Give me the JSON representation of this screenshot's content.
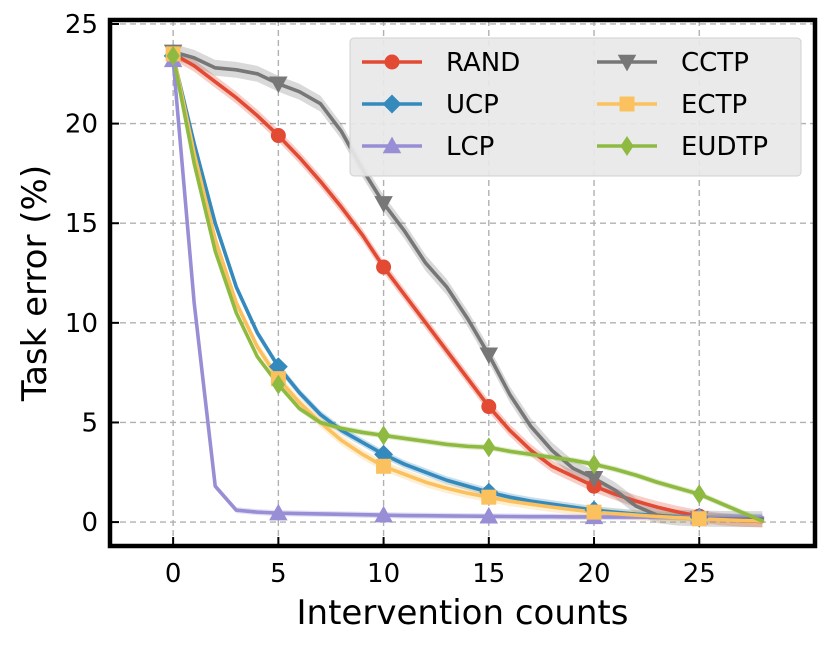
{
  "chart_data": {
    "type": "line",
    "title": "",
    "xlabel": "Intervention counts",
    "ylabel": "Task error (%)",
    "xlim": [
      -3,
      30.5
    ],
    "ylim": [
      -1.2,
      25.2
    ],
    "xticks": [
      0,
      5,
      10,
      15,
      20,
      25
    ],
    "yticks": [
      0,
      5,
      10,
      15,
      20,
      25
    ],
    "grid": true,
    "legend_position": "top-right",
    "series": [
      {
        "name": "RAND",
        "color": "#e24a33",
        "marker": "circle",
        "x": [
          0,
          1,
          2,
          3,
          4,
          5,
          6,
          7,
          8,
          9,
          10,
          11,
          12,
          13,
          14,
          15,
          16,
          17,
          18,
          19,
          20,
          21,
          22,
          23,
          24,
          25,
          26,
          27,
          28
        ],
        "y": [
          23.5,
          22.9,
          22.1,
          21.3,
          20.4,
          19.4,
          18.3,
          17.1,
          15.8,
          14.4,
          12.8,
          11.4,
          10.0,
          8.6,
          7.2,
          5.8,
          4.6,
          3.6,
          2.8,
          2.3,
          1.8,
          1.4,
          1.05,
          0.75,
          0.5,
          0.3,
          0.15,
          0.07,
          0.03
        ],
        "marker_x": [
          0,
          5,
          10,
          15,
          20,
          25
        ],
        "band": 0.3
      },
      {
        "name": "UCP",
        "color": "#348abd",
        "marker": "diamond",
        "x": [
          0,
          1,
          2,
          3,
          4,
          5,
          6,
          7,
          8,
          9,
          10,
          11,
          12,
          13,
          14,
          15,
          16,
          17,
          18,
          19,
          20,
          21,
          22,
          23,
          24,
          25,
          26,
          27,
          28
        ],
        "y": [
          23.4,
          19.0,
          15.0,
          11.8,
          9.5,
          7.8,
          6.5,
          5.4,
          4.6,
          4.0,
          3.4,
          2.9,
          2.5,
          2.1,
          1.8,
          1.5,
          1.25,
          1.05,
          0.9,
          0.75,
          0.6,
          0.5,
          0.4,
          0.33,
          0.28,
          0.25,
          0.23,
          0.22,
          0.21
        ],
        "marker_x": [
          0,
          5,
          10,
          15,
          20,
          25
        ],
        "band": 0.2
      },
      {
        "name": "LCP",
        "color": "#988ed5",
        "marker": "triangle-up",
        "x": [
          0,
          1,
          2,
          3,
          4,
          5,
          6,
          7,
          8,
          9,
          10,
          11,
          12,
          13,
          14,
          15,
          16,
          17,
          18,
          19,
          20,
          21,
          22,
          23,
          24,
          25,
          26,
          27,
          28
        ],
        "y": [
          23.2,
          11.0,
          1.8,
          0.6,
          0.5,
          0.45,
          0.43,
          0.41,
          0.39,
          0.37,
          0.35,
          0.33,
          0.32,
          0.31,
          0.3,
          0.29,
          0.28,
          0.27,
          0.27,
          0.26,
          0.26,
          0.25,
          0.25,
          0.24,
          0.24,
          0.24,
          0.23,
          0.23,
          0.23
        ],
        "marker_x": [
          0,
          5,
          10,
          15,
          20,
          25
        ],
        "band": 0.15
      },
      {
        "name": "CCTP",
        "color": "#777777",
        "marker": "triangle-down",
        "x": [
          0,
          1,
          2,
          3,
          4,
          5,
          6,
          7,
          8,
          9,
          10,
          11,
          12,
          13,
          14,
          15,
          16,
          17,
          18,
          19,
          20,
          21,
          22,
          23,
          24,
          25,
          26,
          27,
          28
        ],
        "y": [
          23.6,
          23.3,
          22.8,
          22.7,
          22.5,
          22.0,
          21.6,
          21.0,
          19.6,
          17.7,
          16.0,
          14.6,
          13.0,
          11.8,
          10.2,
          8.4,
          6.4,
          4.8,
          3.6,
          2.7,
          2.2,
          1.6,
          0.8,
          0.35,
          0.22,
          0.18,
          0.16,
          0.15,
          0.15
        ],
        "marker_x": [
          0,
          5,
          10,
          15,
          20,
          25
        ],
        "band": 0.4
      },
      {
        "name": "ECTP",
        "color": "#fbc15e",
        "marker": "square",
        "x": [
          0,
          1,
          2,
          3,
          4,
          5,
          6,
          7,
          8,
          9,
          10,
          11,
          12,
          13,
          14,
          15,
          16,
          17,
          18,
          19,
          20,
          21,
          22,
          23,
          24,
          25,
          26,
          27,
          28
        ],
        "y": [
          23.5,
          18.5,
          14.2,
          11.0,
          8.8,
          7.2,
          6.0,
          5.0,
          4.1,
          3.4,
          2.8,
          2.4,
          2.0,
          1.7,
          1.45,
          1.25,
          1.05,
          0.9,
          0.75,
          0.62,
          0.5,
          0.42,
          0.35,
          0.28,
          0.22,
          0.17,
          0.12,
          0.08,
          0.05
        ],
        "marker_x": [
          0,
          5,
          10,
          15,
          20,
          25
        ],
        "band": 0.25
      },
      {
        "name": "EUDTP",
        "color": "#8eba42",
        "marker": "diamond-thin",
        "x": [
          0,
          1,
          2,
          3,
          4,
          5,
          6,
          7,
          8,
          9,
          10,
          11,
          12,
          13,
          14,
          15,
          16,
          17,
          18,
          19,
          20,
          21,
          22,
          23,
          24,
          25,
          26,
          27,
          28
        ],
        "y": [
          23.4,
          18.0,
          13.6,
          10.5,
          8.3,
          6.9,
          5.7,
          5.0,
          4.7,
          4.5,
          4.35,
          4.2,
          4.05,
          3.9,
          3.8,
          3.75,
          3.55,
          3.4,
          3.25,
          3.1,
          2.9,
          2.65,
          2.35,
          2.0,
          1.7,
          1.4,
          0.95,
          0.5,
          0.05
        ],
        "marker_x": [
          0,
          5,
          10,
          15,
          20,
          25
        ],
        "band": 0.15
      }
    ]
  }
}
